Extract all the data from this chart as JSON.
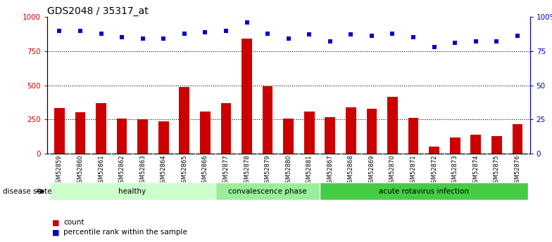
{
  "title": "GDS2048 / 35317_at",
  "samples": [
    "GSM52859",
    "GSM52860",
    "GSM52861",
    "GSM52862",
    "GSM52863",
    "GSM52864",
    "GSM52865",
    "GSM52866",
    "GSM52877",
    "GSM52878",
    "GSM52879",
    "GSM52880",
    "GSM52881",
    "GSM52867",
    "GSM52868",
    "GSM52869",
    "GSM52870",
    "GSM52871",
    "GSM52872",
    "GSM52873",
    "GSM52874",
    "GSM52875",
    "GSM52876"
  ],
  "counts": [
    335,
    305,
    370,
    255,
    250,
    235,
    490,
    310,
    370,
    840,
    495,
    255,
    310,
    265,
    340,
    330,
    415,
    260,
    50,
    120,
    140,
    130,
    215
  ],
  "percentiles": [
    90,
    90,
    88,
    85,
    84,
    84,
    88,
    89,
    90,
    96,
    88,
    84,
    87,
    82,
    87,
    86,
    88,
    85,
    78,
    81,
    82,
    82,
    86
  ],
  "groups": [
    {
      "label": "healthy",
      "start": 0,
      "end": 8,
      "color": "#ccffcc"
    },
    {
      "label": "convalescence phase",
      "start": 8,
      "end": 13,
      "color": "#99ee99"
    },
    {
      "label": "acute rotavirus infection",
      "start": 13,
      "end": 23,
      "color": "#44cc44"
    }
  ],
  "bar_color": "#cc0000",
  "dot_color": "#0000cc",
  "ylim_left": [
    0,
    1000
  ],
  "ylim_right": [
    0,
    100
  ],
  "yticks_left": [
    0,
    250,
    500,
    750,
    1000
  ],
  "yticks_right": [
    0,
    25,
    50,
    75,
    100
  ],
  "ytick_labels_right": [
    "0",
    "25",
    "50",
    "75",
    "100%"
  ],
  "grid_values": [
    250,
    500,
    750
  ],
  "bg_color": "#ffffff",
  "disease_state_label": "disease state",
  "legend_count_label": "count",
  "legend_pct_label": "percentile rank within the sample",
  "xticklabel_bg": "#d8d8d8",
  "title_fontsize": 10,
  "tick_fontsize": 7.5,
  "bar_width": 0.5
}
